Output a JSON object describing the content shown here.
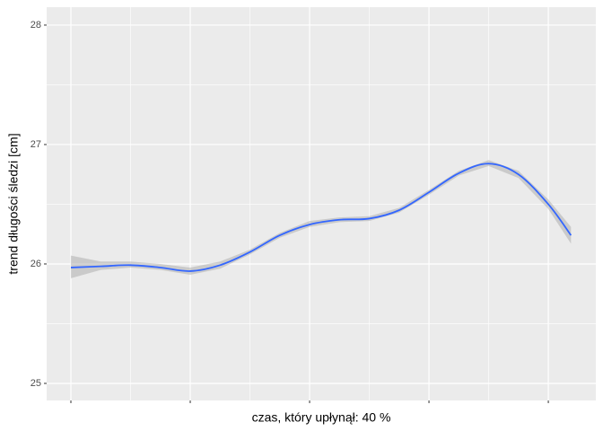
{
  "chart_data": {
    "type": "smooth",
    "xlabel": "czas, który upłynął: 40 %",
    "ylabel": "trend długości śledzi [cm]",
    "x": [
      0,
      0.25,
      0.5,
      0.75,
      1,
      1.25,
      1.5,
      1.75,
      2,
      2.25,
      2.5,
      2.75,
      3,
      3.25,
      3.5,
      3.75,
      4,
      4.19
    ],
    "series": [
      {
        "color": "#3366ff",
        "band_color": "#999999",
        "values": [
          25.97,
          25.98,
          25.99,
          25.97,
          25.94,
          25.99,
          26.1,
          26.24,
          26.33,
          26.37,
          26.38,
          26.45,
          26.6,
          26.76,
          26.84,
          26.75,
          26.5,
          26.24
        ],
        "lower": [
          25.88,
          25.95,
          25.97,
          25.95,
          25.91,
          25.96,
          26.08,
          26.22,
          26.31,
          26.35,
          26.36,
          26.43,
          26.58,
          26.74,
          26.82,
          26.72,
          26.46,
          26.17
        ],
        "upper": [
          26.07,
          26.02,
          26.02,
          26.0,
          25.97,
          26.02,
          26.12,
          26.26,
          26.36,
          26.39,
          26.4,
          26.47,
          26.62,
          26.78,
          26.87,
          26.78,
          26.54,
          26.31
        ]
      }
    ],
    "xlim": [
      -0.203,
      4.398
    ],
    "xticks": [
      0,
      1,
      2,
      3,
      4
    ],
    "xminor": [
      0.5,
      1.5,
      2.5,
      3.5
    ],
    "ylim": [
      24.857,
      28.15
    ],
    "yticks": [
      25,
      26,
      27,
      28
    ],
    "yminor": [
      25.5,
      26.5,
      27.5
    ],
    "grid": true
  }
}
